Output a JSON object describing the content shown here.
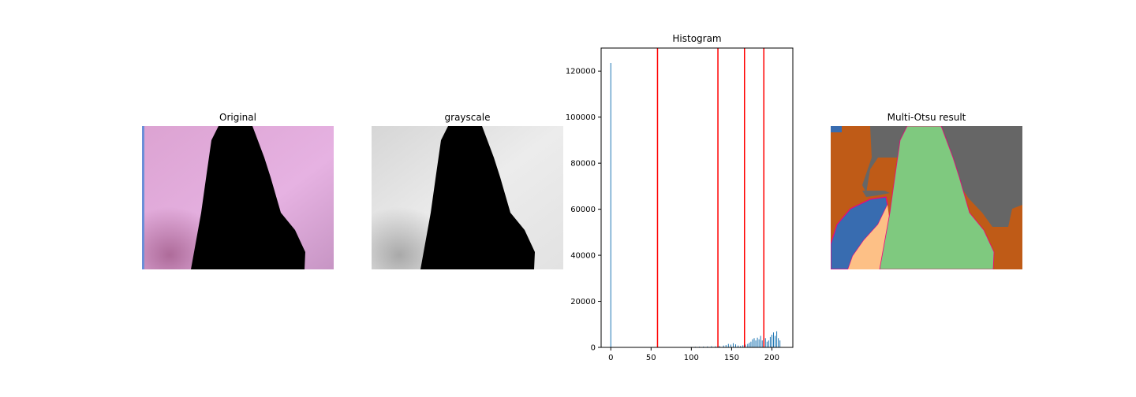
{
  "panels": {
    "original": {
      "title": "Original"
    },
    "grayscale": {
      "title": "grayscale"
    },
    "multi_otsu": {
      "title": "Multi-Otsu result"
    }
  },
  "chart_data": {
    "type": "bar",
    "title": "Histogram",
    "xlabel": "",
    "ylabel": "",
    "xlim": [
      -12,
      226
    ],
    "ylim": [
      0,
      130000
    ],
    "xticks": [
      0,
      50,
      100,
      150,
      200
    ],
    "yticks": [
      0,
      20000,
      40000,
      60000,
      80000,
      100000,
      120000
    ],
    "bar_color": "#1f77b4",
    "threshold_color": "#ff0000",
    "thresholds": [
      58,
      133,
      166,
      190
    ],
    "x": [
      0,
      100,
      105,
      110,
      115,
      120,
      125,
      130,
      135,
      140,
      143,
      146,
      149,
      152,
      155,
      158,
      161,
      164,
      167,
      170,
      172,
      174,
      176,
      178,
      180,
      182,
      184,
      186,
      188,
      190,
      192,
      194,
      196,
      198,
      200,
      202,
      204,
      206,
      208,
      210
    ],
    "values": [
      123500,
      200,
      250,
      300,
      350,
      400,
      500,
      450,
      600,
      800,
      1000,
      1500,
      1200,
      1800,
      1300,
      800,
      600,
      900,
      1200,
      1500,
      2000,
      2500,
      3500,
      4000,
      3000,
      4200,
      3500,
      5000,
      3000,
      5500,
      4000,
      2500,
      3000,
      4500,
      5500,
      6500,
      5000,
      7000,
      4000,
      3000
    ]
  },
  "colors": {
    "pink_light": "#e8b5e6",
    "pink_mid": "#dca3d2",
    "pink_dark": "#b06c98",
    "orange": "#bf5b17",
    "blue": "#386cb0",
    "peach": "#fdc086",
    "green": "#7fc97f",
    "gray": "#666666",
    "magenta": "#f0027f"
  }
}
